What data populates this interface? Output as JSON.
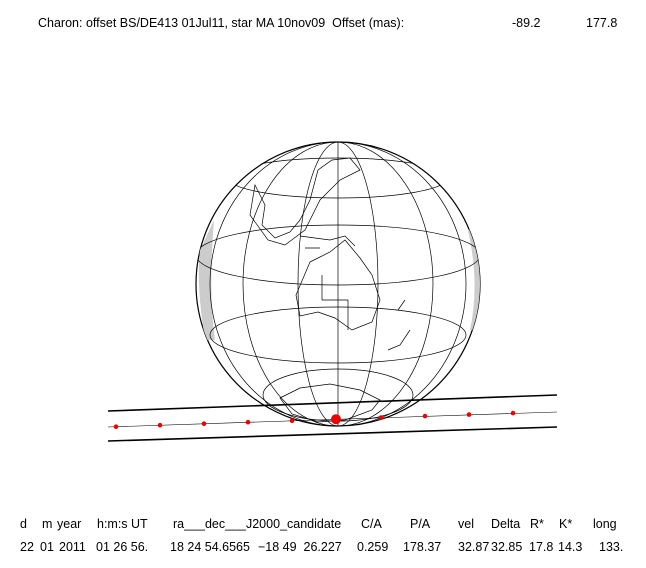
{
  "title": {
    "text": "Charon: offset BS/DE413 01Jul11, star MA 10nov09  Offset (mas):",
    "offset_x": "-89.2",
    "offset_y": "177.8"
  },
  "table": {
    "headers": [
      "d",
      "m",
      "year",
      "h:m:s UT",
      "ra___dec___J2000_candidate",
      "C/A",
      "P/A",
      "vel",
      "Delta",
      "R*",
      "K*",
      "long"
    ],
    "rows": [
      [
        "22",
        "01",
        "2011",
        "01 26 56.",
        "18 24 54.6565",
        "−18 49  26.227",
        "0.259",
        "178.37",
        "32.87",
        "32.85",
        "17.8",
        "14.3",
        "133."
      ]
    ]
  }
}
